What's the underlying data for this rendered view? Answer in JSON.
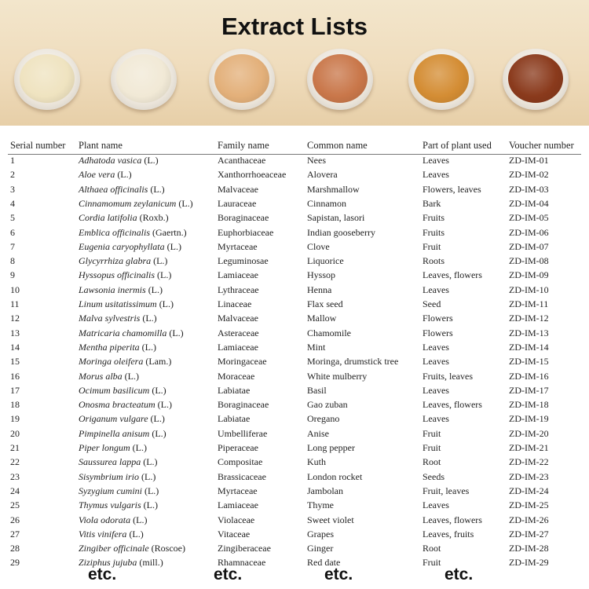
{
  "banner": {
    "title": "Extract Lists",
    "powder_colors": [
      "#efe3c0",
      "#f1e9d6",
      "#e3b07a",
      "#c9774a",
      "#d48d34",
      "#8a3a1c"
    ]
  },
  "table": {
    "headers": [
      "Serial number",
      "Plant name",
      "Family name",
      "Common name",
      "Part of plant used",
      "Voucher number"
    ],
    "rows": [
      {
        "n": "1",
        "species": "Adhatoda vasica",
        "auth": "(L.)",
        "family": "Acanthaceae",
        "common": "Nees",
        "part": "Leaves",
        "voucher": "ZD-IM-01"
      },
      {
        "n": "2",
        "species": "Aloe vera",
        "auth": "(L.)",
        "family": "Xanthorrhoeaceae",
        "common": "Alovera",
        "part": "Leaves",
        "voucher": "ZD-IM-02"
      },
      {
        "n": "3",
        "species": "Althaea officinalis",
        "auth": "(L.)",
        "family": "Malvaceae",
        "common": "Marshmallow",
        "part": "Flowers, leaves",
        "voucher": "ZD-IM-03"
      },
      {
        "n": "4",
        "species": "Cinnamomum zeylanicum",
        "auth": "(L.)",
        "family": "Lauraceae",
        "common": "Cinnamon",
        "part": "Bark",
        "voucher": "ZD-IM-04"
      },
      {
        "n": "5",
        "species": "Cordia latifolia",
        "auth": "(Roxb.)",
        "family": "Boraginaceae",
        "common": "Sapistan, lasori",
        "part": "Fruits",
        "voucher": "ZD-IM-05"
      },
      {
        "n": "6",
        "species": "Emblica officinalis",
        "auth": "(Gaertn.)",
        "family": "Euphorbiaceae",
        "common": "Indian gooseberry",
        "part": "Fruits",
        "voucher": "ZD-IM-06"
      },
      {
        "n": "7",
        "species": "Eugenia caryophyllata",
        "auth": "(L.)",
        "family": "Myrtaceae",
        "common": "Clove",
        "part": "Fruit",
        "voucher": "ZD-IM-07"
      },
      {
        "n": "8",
        "species": "Glycyrrhiza glabra",
        "auth": "(L.)",
        "family": "Leguminosae",
        "common": "Liquorice",
        "part": "Roots",
        "voucher": "ZD-IM-08"
      },
      {
        "n": "9",
        "species": "Hyssopus officinalis",
        "auth": "(L.)",
        "family": "Lamiaceae",
        "common": "Hyssop",
        "part": "Leaves, flowers",
        "voucher": "ZD-IM-09"
      },
      {
        "n": "10",
        "species": "Lawsonia inermis",
        "auth": "(L.)",
        "family": "Lythraceae",
        "common": "Henna",
        "part": "Leaves",
        "voucher": "ZD-IM-10"
      },
      {
        "n": "11",
        "species": "Linum usitatissimum",
        "auth": "(L.)",
        "family": "Linaceae",
        "common": "Flax seed",
        "part": "Seed",
        "voucher": "ZD-IM-11"
      },
      {
        "n": "12",
        "species": "Malva sylvestris",
        "auth": "(L.)",
        "family": "Malvaceae",
        "common": "Mallow",
        "part": "Flowers",
        "voucher": "ZD-IM-12"
      },
      {
        "n": "13",
        "species": "Matricaria chamomilla",
        "auth": "(L.)",
        "family": "Asteraceae",
        "common": "Chamomile",
        "part": "Flowers",
        "voucher": "ZD-IM-13"
      },
      {
        "n": "14",
        "species": "Mentha piperita",
        "auth": "(L.)",
        "family": "Lamiaceae",
        "common": "Mint",
        "part": "Leaves",
        "voucher": "ZD-IM-14"
      },
      {
        "n": "15",
        "species": "Moringa oleifera",
        "auth": "(Lam.)",
        "family": "Moringaceae",
        "common": "Moringa, drumstick tree",
        "part": "Leaves",
        "voucher": "ZD-IM-15"
      },
      {
        "n": "16",
        "species": "Morus alba",
        "auth": "(L.)",
        "family": "Moraceae",
        "common": "White mulberry",
        "part": "Fruits, leaves",
        "voucher": "ZD-IM-16"
      },
      {
        "n": "17",
        "species": "Ocimum basilicum",
        "auth": "(L.)",
        "family": "Labiatae",
        "common": "Basil",
        "part": "Leaves",
        "voucher": "ZD-IM-17"
      },
      {
        "n": "18",
        "species": "Onosma bracteatum",
        "auth": "(L.)",
        "family": "Boraginaceae",
        "common": "Gao zuban",
        "part": "Leaves, flowers",
        "voucher": "ZD-IM-18"
      },
      {
        "n": "19",
        "species": "Origanum vulgare",
        "auth": "(L.)",
        "family": "Labiatae",
        "common": "Oregano",
        "part": "Leaves",
        "voucher": "ZD-IM-19"
      },
      {
        "n": "20",
        "species": "Pimpinella anisum",
        "auth": "(L.)",
        "family": "Umbelliferae",
        "common": "Anise",
        "part": "Fruit",
        "voucher": "ZD-IM-20"
      },
      {
        "n": "21",
        "species": "Piper longum",
        "auth": "(L.)",
        "family": "Piperaceae",
        "common": "Long pepper",
        "part": "Fruit",
        "voucher": "ZD-IM-21"
      },
      {
        "n": "22",
        "species": "Saussurea lappa",
        "auth": "(L.)",
        "family": "Compositae",
        "common": "Kuth",
        "part": "Root",
        "voucher": "ZD-IM-22"
      },
      {
        "n": "23",
        "species": "Sisymbrium irio",
        "auth": "(L.)",
        "family": "Brassicaceae",
        "common": "London rocket",
        "part": "Seeds",
        "voucher": "ZD-IM-23"
      },
      {
        "n": "24",
        "species": "Syzygium cumini",
        "auth": "(L.)",
        "family": "Myrtaceae",
        "common": "Jambolan",
        "part": "Fruit, leaves",
        "voucher": "ZD-IM-24"
      },
      {
        "n": "25",
        "species": "Thymus vulgaris",
        "auth": "(L.)",
        "family": "Lamiaceae",
        "common": "Thyme",
        "part": "Leaves",
        "voucher": "ZD-IM-25"
      },
      {
        "n": "26",
        "species": "Viola odorata",
        "auth": "(L.)",
        "family": "Violaceae",
        "common": "Sweet violet",
        "part": "Leaves, flowers",
        "voucher": "ZD-IM-26"
      },
      {
        "n": "27",
        "species": "Vitis vinifera",
        "auth": "(L.)",
        "family": "Vitaceae",
        "common": "Grapes",
        "part": "Leaves, fruits",
        "voucher": "ZD-IM-27"
      },
      {
        "n": "28",
        "species": "Zingiber officinale",
        "auth": "(Roscoe)",
        "family": "Zingiberaceae",
        "common": "Ginger",
        "part": "Root",
        "voucher": "ZD-IM-28"
      },
      {
        "n": "29",
        "species": "Ziziphus jujuba",
        "auth": "(mill.)",
        "family": "Rhamnaceae",
        "common": "Red date",
        "part": "Fruit",
        "voucher": "ZD-IM-29"
      }
    ],
    "etc": [
      "etc.",
      "etc.",
      "etc.",
      "etc."
    ]
  }
}
